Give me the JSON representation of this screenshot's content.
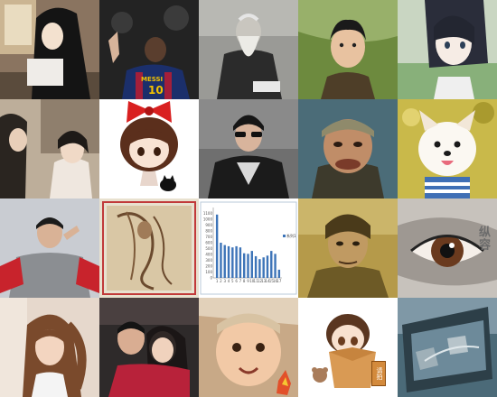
{
  "tiles": [
    {
      "id": 1,
      "subject": "woman with long black hair by a window"
    },
    {
      "id": 2,
      "subject": "football player back view",
      "jersey_text": "MESSI",
      "jersey_number": "10"
    },
    {
      "id": 3,
      "subject": "elderly bearded man in black and white"
    },
    {
      "id": 4,
      "subject": "boy looking upward"
    },
    {
      "id": 5,
      "subject": "anime character with dark hair"
    },
    {
      "id": 6,
      "subject": "two figures in period costume"
    },
    {
      "id": 7,
      "subject": "chibi girl with red bow and black cat"
    },
    {
      "id": 8,
      "subject": "man in sunglasses and leather jacket"
    },
    {
      "id": 9,
      "subject": "man with headband and comical face"
    },
    {
      "id": 10,
      "subject": "smiling white fluffy dog"
    },
    {
      "id": 11,
      "subject": "man in grey hoodie posing"
    },
    {
      "id": 12,
      "subject": "ink sketch of a figure on parchment"
    },
    {
      "id": 13,
      "subject": "bar chart screenshot"
    },
    {
      "id": 14,
      "subject": "middle-aged man in sepia tone"
    },
    {
      "id": 15,
      "subject": "close-up of a brown eye",
      "caption": "纵容"
    },
    {
      "id": 16,
      "subject": "girl with ponytail"
    },
    {
      "id": 17,
      "subject": "couple embracing"
    },
    {
      "id": 18,
      "subject": "baby smiling"
    },
    {
      "id": 19,
      "subject": "cartoon kid in a cardboard box with teddy",
      "box_label": "请拍"
    },
    {
      "id": 20,
      "subject": "camera lens view over a city"
    }
  ],
  "chart_data": {
    "type": "bar",
    "title": "",
    "xlabel": "",
    "ylabel": "",
    "categories": [
      "1",
      "2",
      "3",
      "4",
      "5",
      "6",
      "7",
      "8",
      "9",
      "10",
      "11",
      "12",
      "13",
      "14",
      "15",
      "16",
      "17"
    ],
    "values": [
      1080,
      600,
      560,
      540,
      520,
      540,
      520,
      420,
      410,
      460,
      370,
      320,
      350,
      380,
      460,
      410,
      140
    ],
    "ylim": [
      0,
      1200
    ],
    "yticks": [
      "0",
      "100",
      "200",
      "300",
      "400",
      "500",
      "600",
      "700",
      "800",
      "900",
      "1000",
      "1100"
    ],
    "series": [
      {
        "name": "系列1",
        "color": "#3d74b8"
      }
    ],
    "legend_position": "right",
    "grid": false
  },
  "colors": {
    "messi_shirt": "#1b2f6b",
    "bow_red": "#d92020",
    "chart_bar": "#3d74b8"
  }
}
